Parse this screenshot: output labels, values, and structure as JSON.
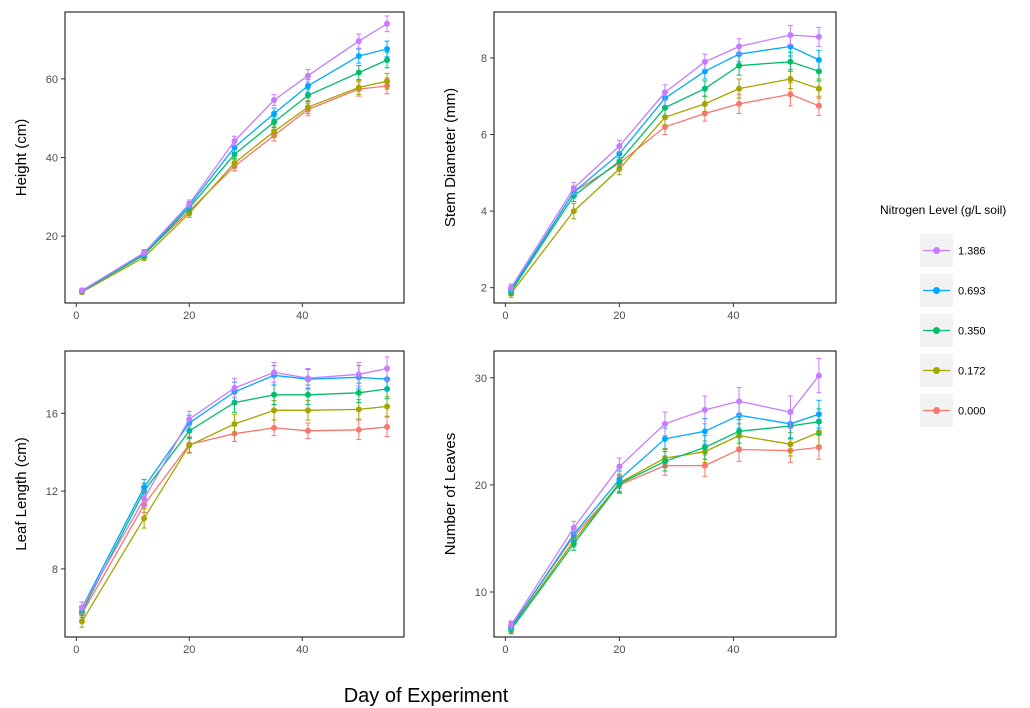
{
  "figure": {
    "shared_xlabel": "Day of Experiment"
  },
  "legend": {
    "title": "Nitrogen Level (g/L soil)",
    "placement": "right",
    "entries": [
      {
        "label": "1.386",
        "color": "#c77cff"
      },
      {
        "label": "0.693",
        "color": "#00a9ff"
      },
      {
        "label": "0.350",
        "color": "#00be67"
      },
      {
        "label": "0.172",
        "color": "#a3a500"
      },
      {
        "label": "0.000",
        "color": "#f8766d"
      }
    ]
  },
  "chart_data": [
    {
      "type": "line",
      "xlabel": "",
      "ylabel": "Height (cm)",
      "x": [
        1,
        12,
        20,
        28,
        35,
        41,
        50,
        55
      ],
      "xlim": [
        -2,
        58
      ],
      "ylim": [
        3,
        77
      ],
      "xticks": [
        0,
        20,
        40
      ],
      "yticks": [
        20,
        40,
        60
      ],
      "grid": false,
      "series": [
        {
          "name": "1.386",
          "color": "#c77cff",
          "values": [
            6.2,
            15.8,
            28.2,
            44.2,
            54.6,
            60.8,
            69.6,
            74.0
          ],
          "errors": [
            0.6,
            0.8,
            1.0,
            1.2,
            1.4,
            1.6,
            1.8,
            2.0
          ]
        },
        {
          "name": "0.693",
          "color": "#00a9ff",
          "values": [
            6.0,
            15.6,
            27.8,
            42.6,
            51.2,
            58.2,
            65.8,
            67.6
          ],
          "errors": [
            0.6,
            0.8,
            1.0,
            1.2,
            1.4,
            1.6,
            1.8,
            2.0
          ]
        },
        {
          "name": "0.350",
          "color": "#00be67",
          "values": [
            6.0,
            15.2,
            27.2,
            40.8,
            49.0,
            55.8,
            61.6,
            64.8
          ],
          "errors": [
            0.6,
            0.8,
            1.0,
            1.2,
            1.4,
            1.6,
            1.8,
            2.0
          ]
        },
        {
          "name": "0.172",
          "color": "#a3a500",
          "values": [
            5.8,
            14.6,
            25.8,
            38.6,
            46.6,
            52.8,
            57.8,
            59.4
          ],
          "errors": [
            0.6,
            0.8,
            1.0,
            1.2,
            1.4,
            1.6,
            1.8,
            2.0
          ]
        },
        {
          "name": "0.000",
          "color": "#f8766d",
          "values": [
            6.0,
            15.4,
            26.4,
            37.8,
            45.6,
            52.2,
            57.4,
            58.2
          ],
          "errors": [
            0.6,
            0.8,
            1.0,
            1.2,
            1.4,
            1.6,
            1.8,
            2.0
          ]
        }
      ]
    },
    {
      "type": "line",
      "xlabel": "",
      "ylabel": "Stem Diameter (mm)",
      "x": [
        1,
        12,
        20,
        28,
        35,
        41,
        50,
        55
      ],
      "xlim": [
        -2,
        58
      ],
      "ylim": [
        1.6,
        9.2
      ],
      "xticks": [
        0,
        20,
        40
      ],
      "yticks": [
        2,
        4,
        6,
        8
      ],
      "grid": false,
      "series": [
        {
          "name": "1.386",
          "color": "#c77cff",
          "values": [
            2.0,
            4.6,
            5.7,
            7.1,
            7.9,
            8.3,
            8.6,
            8.55
          ],
          "errors": [
            0.1,
            0.15,
            0.15,
            0.2,
            0.2,
            0.2,
            0.25,
            0.25
          ]
        },
        {
          "name": "0.693",
          "color": "#00a9ff",
          "values": [
            1.95,
            4.5,
            5.5,
            6.95,
            7.65,
            8.1,
            8.3,
            7.95
          ],
          "errors": [
            0.1,
            0.15,
            0.15,
            0.2,
            0.2,
            0.2,
            0.25,
            0.25
          ]
        },
        {
          "name": "0.350",
          "color": "#00be67",
          "values": [
            1.9,
            4.4,
            5.3,
            6.7,
            7.2,
            7.8,
            7.9,
            7.65
          ],
          "errors": [
            0.1,
            0.15,
            0.15,
            0.2,
            0.2,
            0.25,
            0.25,
            0.25
          ]
        },
        {
          "name": "0.172",
          "color": "#a3a500",
          "values": [
            1.85,
            4.0,
            5.1,
            6.45,
            6.8,
            7.2,
            7.45,
            7.2
          ],
          "errors": [
            0.1,
            0.2,
            0.15,
            0.2,
            0.2,
            0.25,
            0.25,
            0.25
          ]
        },
        {
          "name": "0.000",
          "color": "#f8766d",
          "values": [
            1.9,
            4.5,
            5.25,
            6.2,
            6.55,
            6.8,
            7.05,
            6.75
          ],
          "errors": [
            0.1,
            0.15,
            0.15,
            0.2,
            0.2,
            0.25,
            0.3,
            0.25
          ]
        }
      ]
    },
    {
      "type": "line",
      "xlabel": "",
      "ylabel": "Leaf Length (cm)",
      "x": [
        1,
        12,
        20,
        28,
        35,
        41,
        50,
        55
      ],
      "xlim": [
        -2,
        58
      ],
      "ylim": [
        4.5,
        19.2
      ],
      "xticks": [
        0,
        20,
        40
      ],
      "yticks": [
        8,
        12,
        16
      ],
      "grid": false,
      "series": [
        {
          "name": "1.386",
          "color": "#c77cff",
          "values": [
            6.0,
            11.6,
            15.7,
            17.3,
            18.1,
            17.8,
            18.0,
            18.3
          ],
          "errors": [
            0.3,
            0.4,
            0.4,
            0.5,
            0.5,
            0.5,
            0.6,
            0.6
          ]
        },
        {
          "name": "0.693",
          "color": "#00a9ff",
          "values": [
            6.0,
            12.2,
            15.5,
            17.1,
            17.95,
            17.75,
            17.85,
            17.75
          ],
          "errors": [
            0.3,
            0.4,
            0.4,
            0.5,
            0.5,
            0.5,
            0.6,
            0.6
          ]
        },
        {
          "name": "0.350",
          "color": "#00be67",
          "values": [
            5.8,
            12.0,
            15.1,
            16.55,
            16.95,
            16.95,
            17.05,
            17.25
          ],
          "errors": [
            0.3,
            0.4,
            0.4,
            0.5,
            0.5,
            0.5,
            0.5,
            0.5
          ]
        },
        {
          "name": "0.172",
          "color": "#a3a500",
          "values": [
            5.3,
            10.6,
            14.35,
            15.45,
            16.15,
            16.15,
            16.2,
            16.35
          ],
          "errors": [
            0.3,
            0.5,
            0.4,
            0.5,
            0.5,
            0.5,
            0.5,
            0.5
          ]
        },
        {
          "name": "0.000",
          "color": "#f8766d",
          "values": [
            5.7,
            11.3,
            14.4,
            14.95,
            15.25,
            15.1,
            15.15,
            15.3
          ],
          "errors": [
            0.3,
            0.4,
            0.4,
            0.4,
            0.4,
            0.4,
            0.5,
            0.5
          ]
        }
      ]
    },
    {
      "type": "line",
      "xlabel": "",
      "ylabel": "Number of Leaves",
      "x": [
        1,
        12,
        20,
        28,
        35,
        41,
        50,
        55
      ],
      "xlim": [
        -2,
        58
      ],
      "ylim": [
        5.8,
        32.5
      ],
      "xticks": [
        0,
        20,
        40
      ],
      "yticks": [
        10,
        20,
        30
      ],
      "grid": false,
      "series": [
        {
          "name": "1.386",
          "color": "#c77cff",
          "values": [
            6.9,
            16.0,
            21.7,
            25.7,
            27.0,
            27.8,
            26.8,
            30.2
          ],
          "errors": [
            0.4,
            0.6,
            0.8,
            1.1,
            1.3,
            1.3,
            1.5,
            1.6
          ]
        },
        {
          "name": "0.693",
          "color": "#00a9ff",
          "values": [
            6.7,
            15.4,
            20.5,
            24.3,
            25.0,
            26.5,
            25.7,
            26.6
          ],
          "errors": [
            0.4,
            0.6,
            0.8,
            1.0,
            1.2,
            1.2,
            1.3,
            1.3
          ]
        },
        {
          "name": "0.350",
          "color": "#00be67",
          "values": [
            6.5,
            14.5,
            20.1,
            22.2,
            23.5,
            25.0,
            25.5,
            25.9
          ],
          "errors": [
            0.4,
            0.6,
            0.8,
            0.9,
            1.1,
            1.1,
            1.2,
            1.2
          ]
        },
        {
          "name": "0.172",
          "color": "#a3a500",
          "values": [
            6.6,
            14.8,
            20.2,
            22.5,
            23.1,
            24.6,
            23.8,
            24.9
          ],
          "errors": [
            0.4,
            0.6,
            0.8,
            0.9,
            1.0,
            1.1,
            1.1,
            1.2
          ]
        },
        {
          "name": "0.000",
          "color": "#f8766d",
          "values": [
            6.8,
            15.2,
            20.0,
            21.8,
            21.8,
            23.3,
            23.2,
            23.5
          ],
          "errors": [
            0.4,
            0.6,
            0.8,
            0.9,
            1.0,
            1.1,
            1.1,
            1.1
          ]
        }
      ]
    }
  ]
}
